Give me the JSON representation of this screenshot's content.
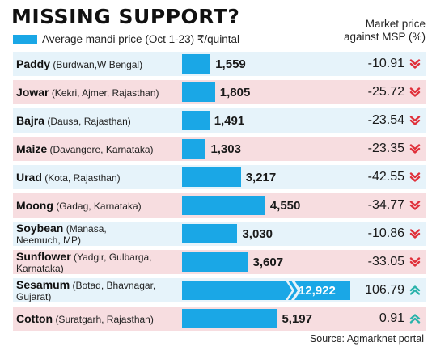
{
  "title": "MISSING SUPPORT?",
  "legend_label": "Average mandi price (Oct 1-23) ₹/quintal",
  "column_header": [
    "Market price",
    "against MSP (%)"
  ],
  "source": "Source: Agmarknet portal",
  "colors": {
    "bar": "#1aa7e6",
    "row_blue": "#e6f3fa",
    "row_pink": "#f7dde0",
    "down_arrow": "#e0303a",
    "up_arrow": "#2bb3ab"
  },
  "chart_data": {
    "type": "bar",
    "orientation": "horizontal",
    "categories": [
      "Paddy",
      "Jowar",
      "Bajra",
      "Maize",
      "Urad",
      "Moong",
      "Soybean",
      "Sunflower",
      "Sesamum",
      "Cotton"
    ],
    "locations": [
      [
        "(Burdwan,W Bengal)"
      ],
      [
        "(Kekri, Ajmer, Rajasthan)"
      ],
      [
        "(Dausa, Rajasthan)"
      ],
      [
        "(Davangere, Karnataka)"
      ],
      [
        "(Kota, Rajasthan)"
      ],
      [
        "(Gadag, Karnataka)"
      ],
      [
        "(Manasa,",
        "Neemuch, MP)"
      ],
      [
        "(Yadgir, Gulbarga,",
        "Karnataka)"
      ],
      [
        "(Botad, Bhavnagar,",
        "Gujarat)"
      ],
      [
        "(Suratgarh, Rajasthan)"
      ]
    ],
    "series": [
      {
        "name": "Average mandi price (Oct 1-23) ₹/quintal",
        "values": [
          1559,
          1805,
          1491,
          1303,
          3217,
          4550,
          3030,
          3607,
          12922,
          5197
        ]
      },
      {
        "name": "Market price against MSP (%)",
        "values": [
          -10.91,
          -25.72,
          -23.54,
          -23.35,
          -42.55,
          -34.77,
          -10.86,
          -33.05,
          106.79,
          0.91
        ]
      }
    ],
    "value_labels": [
      "1,559",
      "1,805",
      "1,491",
      "1,303",
      "3,217",
      "4,550",
      "3,030",
      "3,607",
      "12,922",
      "5,197"
    ],
    "pct_labels": [
      "-10.91",
      "-25.72",
      "-23.54",
      "-23.35",
      "-42.55",
      "-34.77",
      "-10.86",
      "-33.05",
      "106.79",
      "0.91"
    ],
    "directions": [
      "down",
      "down",
      "down",
      "down",
      "down",
      "down",
      "down",
      "down",
      "up",
      "up"
    ],
    "bar_axis_truncated": true,
    "legend_position": "top-left"
  }
}
